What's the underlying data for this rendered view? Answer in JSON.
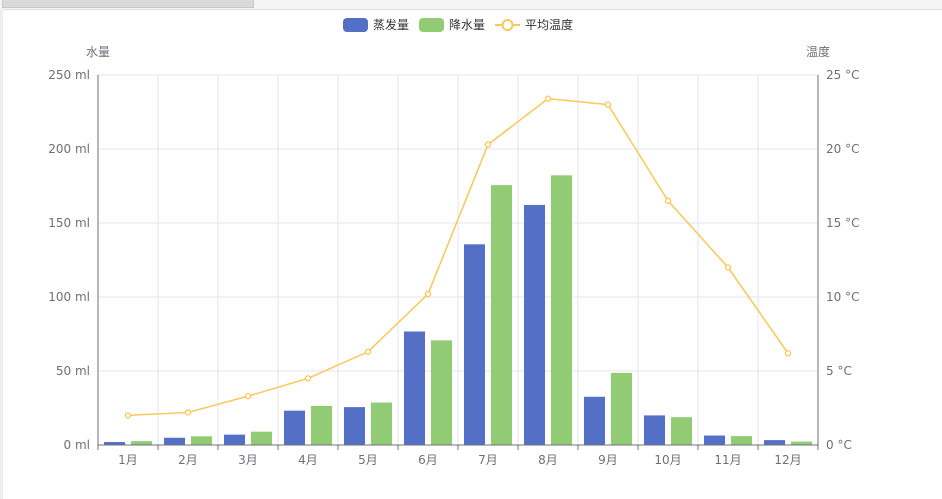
{
  "chart_data": {
    "type": "bar",
    "categories": [
      "1月",
      "2月",
      "3月",
      "4月",
      "5月",
      "6月",
      "7月",
      "8月",
      "9月",
      "10月",
      "11月",
      "12月"
    ],
    "series": [
      {
        "name": "蒸发量",
        "type": "bar",
        "axis": "left",
        "color": "#5470c6",
        "values": [
          2.0,
          4.9,
          7.0,
          23.2,
          25.6,
          76.7,
          135.6,
          162.2,
          32.6,
          20.0,
          6.4,
          3.3
        ]
      },
      {
        "name": "降水量",
        "type": "bar",
        "axis": "left",
        "color": "#91cc75",
        "values": [
          2.6,
          5.9,
          9.0,
          26.4,
          28.7,
          70.7,
          175.6,
          182.2,
          48.7,
          18.8,
          6.0,
          2.3
        ]
      },
      {
        "name": "平均温度",
        "type": "line",
        "axis": "right",
        "color": "#fac858",
        "values": [
          2.0,
          2.2,
          3.3,
          4.5,
          6.3,
          10.2,
          20.3,
          23.4,
          23.0,
          16.5,
          12.0,
          6.2
        ]
      }
    ],
    "y_left": {
      "name": "水量",
      "min": 0,
      "max": 250,
      "ticks": [
        "0 ml",
        "50 ml",
        "100 ml",
        "150 ml",
        "200 ml",
        "250 ml"
      ]
    },
    "y_right": {
      "name": "温度",
      "min": 0,
      "max": 25,
      "ticks": [
        "0 °C",
        "5 °C",
        "10 °C",
        "15 °C",
        "20 °C",
        "25 °C"
      ]
    },
    "grid": true,
    "legend_position": "top-center"
  }
}
